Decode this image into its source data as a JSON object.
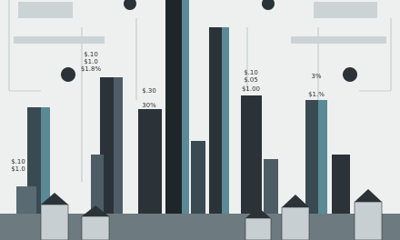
{
  "labels": [
    "$.10",
    "$1.0",
    "$1.8%",
    "$.30",
    "30%",
    "$.10",
    "$.05",
    "$1.00",
    "3%",
    "$1.%",
    "$.10",
    "$1.0"
  ]
}
